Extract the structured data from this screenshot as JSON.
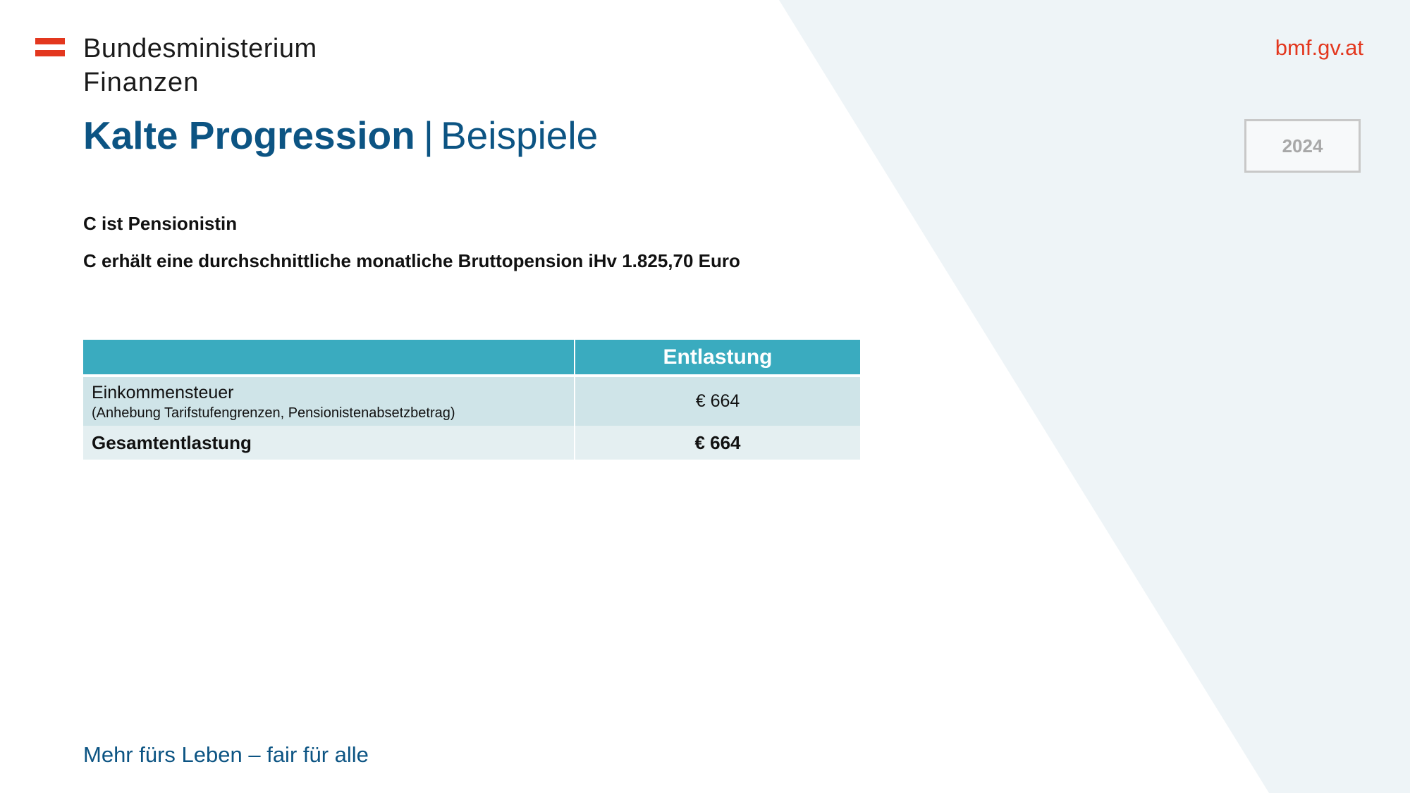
{
  "header": {
    "logo_line1": "Bundesministerium",
    "logo_line2": "Finanzen",
    "site_link": "bmf.gv.at",
    "year": "2024"
  },
  "title": {
    "main": "Kalte Progression",
    "separator": "|",
    "sub": "Beispiele"
  },
  "intro": {
    "line1": "C ist Pensionistin",
    "line2": "C erhält eine durchschnittliche monatliche Bruttopension iHv 1.825,70 Euro"
  },
  "table": {
    "header_col1": "",
    "header_col2": "Entlastung",
    "rows": [
      {
        "label": "Einkommensteuer",
        "note": "(Anhebung Tarifstufengrenzen, Pensionistenabsetzbetrag)",
        "value": "€ 664"
      },
      {
        "label": "Gesamtentlastung",
        "value": "€ 664"
      }
    ]
  },
  "footer": {
    "slogan": "Mehr fürs Leben – fair für alle"
  },
  "colors": {
    "brand_blue": "#0c5483",
    "brand_red": "#e3371e",
    "table_header": "#3aabbf",
    "row_1": "#cfe4e8",
    "row_2": "#e4eff1",
    "background_shape": "#eef4f7"
  },
  "icons": {
    "logo_mark": "austrian-flag-stripes-icon"
  }
}
